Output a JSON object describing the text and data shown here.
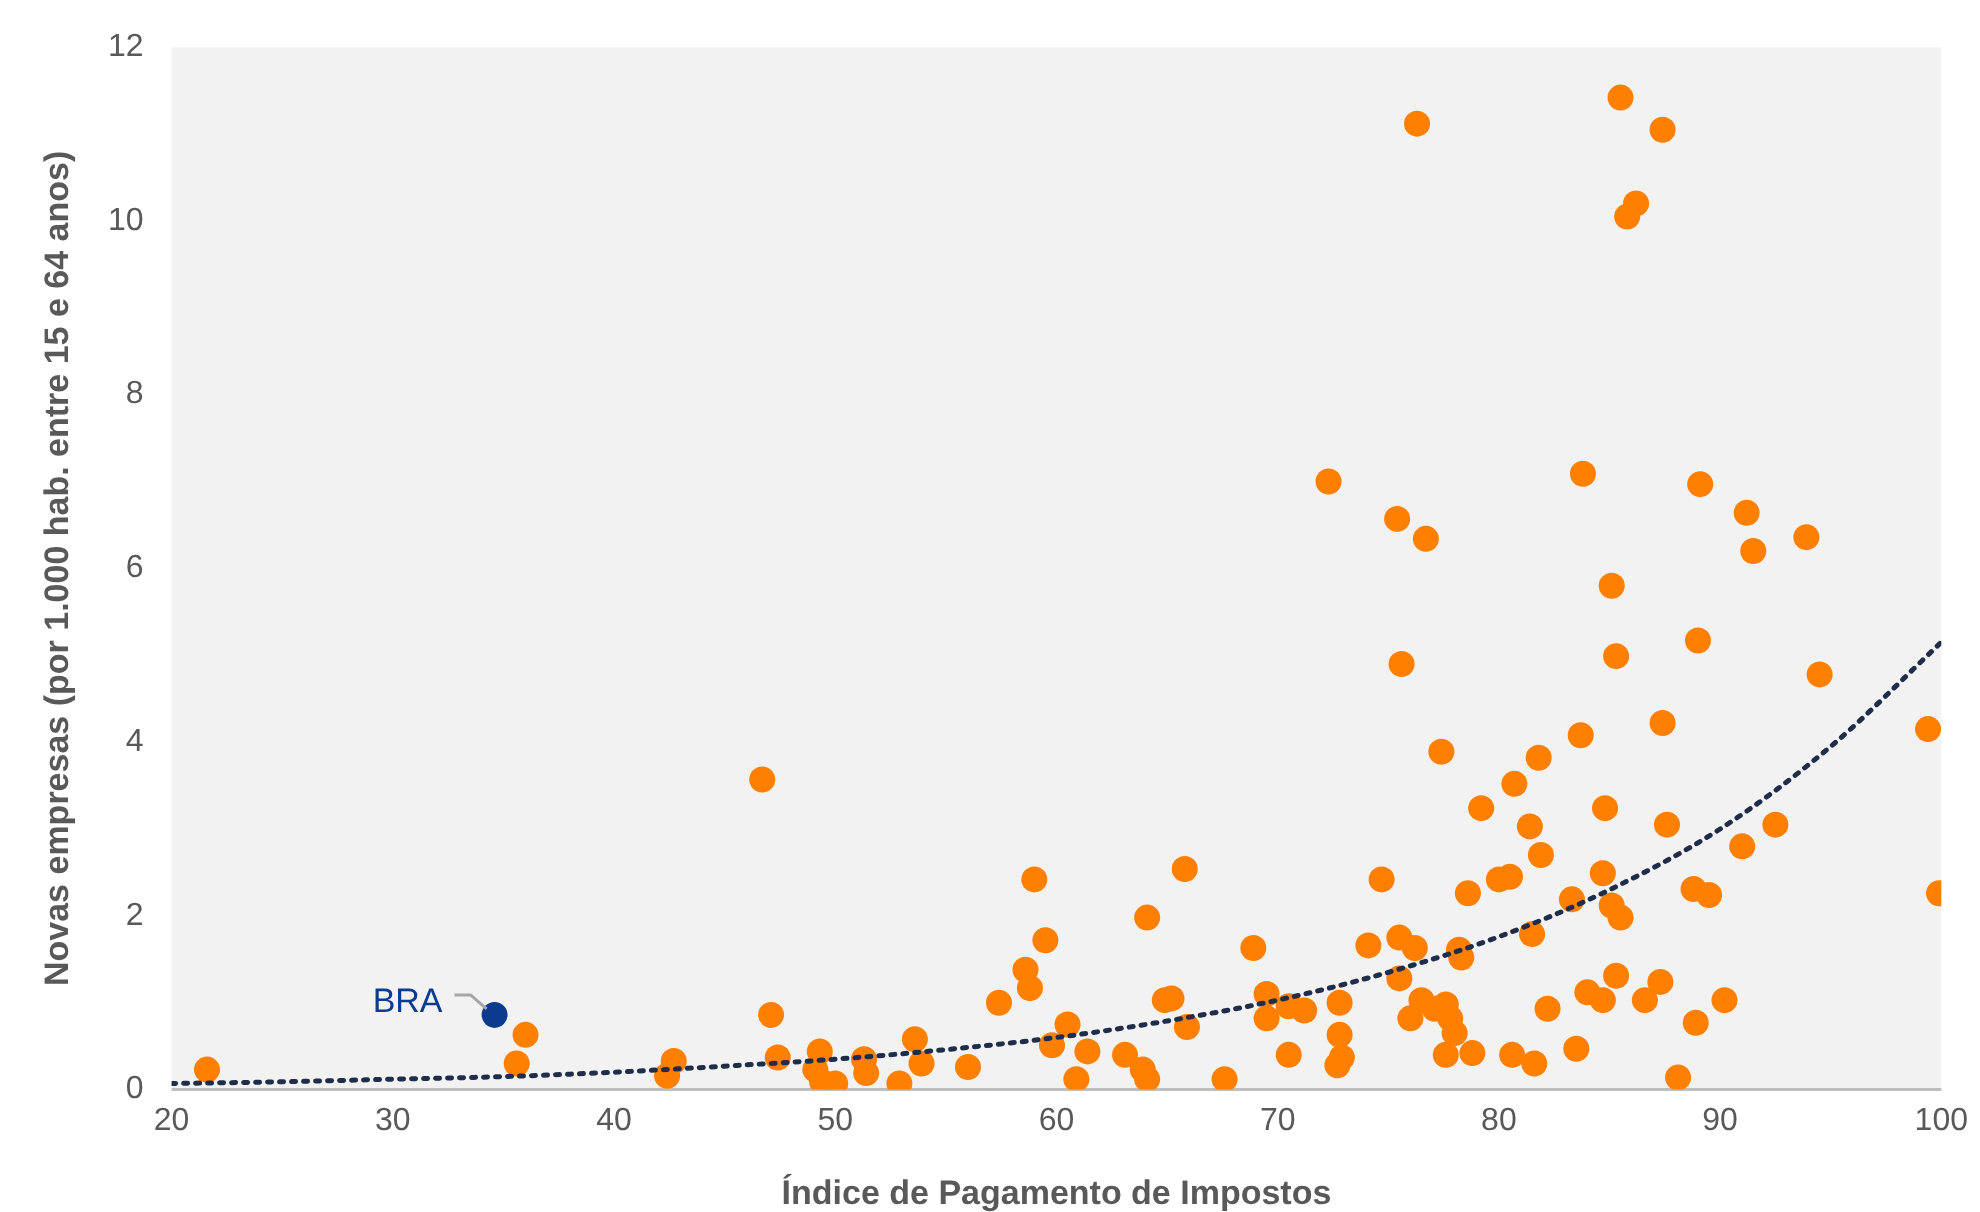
{
  "chart_data": {
    "type": "scatter",
    "xlabel": "Índice de Pagamento de Impostos",
    "ylabel": "Novas empresas (por 1.000 hab. entre 15 e 64 anos)",
    "xlim": [
      20,
      100
    ],
    "xticks": [
      20,
      30,
      40,
      50,
      60,
      70,
      80,
      90,
      100
    ],
    "ylim": [
      0,
      12
    ],
    "yticks": [
      0,
      2,
      4,
      6,
      8,
      10,
      12
    ],
    "grid": false,
    "legend": false,
    "marker": "circle",
    "series": [
      {
        "color": "#ff7f00",
        "x": [
          21.6,
          36,
          35.6,
          46.7,
          47.1,
          47.4,
          42.4,
          42.7,
          49.3,
          49.1,
          49.4,
          50,
          51.3,
          51.4,
          52.9,
          53.6,
          53.9,
          56,
          57.4,
          58.6,
          58.8,
          59,
          59.5,
          59.8,
          60.5,
          60.9,
          61.4,
          63.1,
          63.9,
          64.1,
          64.1,
          64.9,
          65.2,
          65.8,
          65.9,
          67.6,
          68.9,
          69.5,
          69.5,
          70.5,
          70.5,
          71.2,
          72.3,
          72.7,
          72.9,
          72.8,
          72.8,
          74.1,
          74.7,
          75.4,
          75.5,
          75.6,
          75.5,
          76,
          76.2,
          76.3,
          76.5,
          76.7,
          77.1,
          77.4,
          77.6,
          77.6,
          77.8,
          78,
          78.2,
          78.3,
          78.6,
          78.8,
          79.2,
          80,
          80.5,
          80.6,
          80.7,
          81.4,
          81.5,
          81.6,
          81.8,
          81.9,
          82.2,
          83.3,
          83.5,
          83.7,
          83.8,
          84,
          84.7,
          84.8,
          84.7,
          85.1,
          85.1,
          85.3,
          85.3,
          85.5,
          85.5,
          85.8,
          86.2,
          86.6,
          87.3,
          87.4,
          87.4,
          87.6,
          88.1,
          88.8,
          88.9,
          89,
          89.1,
          89.5,
          90.2,
          91,
          91.2,
          91.5,
          92.5,
          93.9,
          94.5,
          99.4,
          99.9
        ],
        "values": [
          0.23,
          0.63,
          0.3,
          3.57,
          0.86,
          0.37,
          0.16,
          0.33,
          0.44,
          0.23,
          0.09,
          0.07,
          0.35,
          0.19,
          0.07,
          0.58,
          0.3,
          0.26,
          1.0,
          1.38,
          1.17,
          2.42,
          1.72,
          0.51,
          0.75,
          0.12,
          0.44,
          0.4,
          0.23,
          0.12,
          1.98,
          1.03,
          1.05,
          2.54,
          0.72,
          0.12,
          1.63,
          1.1,
          0.82,
          0.96,
          0.4,
          0.91,
          7.0,
          0.28,
          0.37,
          1.0,
          0.63,
          1.66,
          2.42,
          6.57,
          1.28,
          4.9,
          1.75,
          0.82,
          1.63,
          11.12,
          1.03,
          6.34,
          0.93,
          3.89,
          0.98,
          0.4,
          0.82,
          0.65,
          1.61,
          1.52,
          2.26,
          0.42,
          3.24,
          2.42,
          2.45,
          0.4,
          3.52,
          3.03,
          1.79,
          0.3,
          3.82,
          2.7,
          0.93,
          2.19,
          0.47,
          4.08,
          7.09,
          1.12,
          1.03,
          3.24,
          2.49,
          5.8,
          2.12,
          4.99,
          1.31,
          11.42,
          1.98,
          10.05,
          10.2,
          1.03,
          1.24,
          11.05,
          4.22,
          3.05,
          0.14,
          2.31,
          0.77,
          5.17,
          6.97,
          2.24,
          1.03,
          2.8,
          6.64,
          6.2,
          3.05,
          6.36,
          4.78,
          4.15,
          2.26
        ]
      },
      {
        "type": "scatter",
        "color": "#0b3a8f",
        "x": [
          34.6
        ],
        "values": [
          0.86
        ]
      },
      {
        "type": "line",
        "color": "#1f2d4a",
        "line_style": "dotted",
        "marker": "none",
        "x": [
          20,
          25,
          30,
          35,
          40,
          45,
          50,
          55,
          60,
          65,
          70,
          75,
          80,
          85,
          90,
          95,
          100
        ],
        "values": [
          0.07,
          0.09,
          0.12,
          0.15,
          0.2,
          0.27,
          0.35,
          0.46,
          0.6,
          0.79,
          1.03,
          1.35,
          1.76,
          2.3,
          3.0,
          3.95,
          5.15
        ]
      }
    ],
    "annotations": [
      {
        "text": "BRA",
        "x": 34.6,
        "y": 0.86
      }
    ]
  }
}
